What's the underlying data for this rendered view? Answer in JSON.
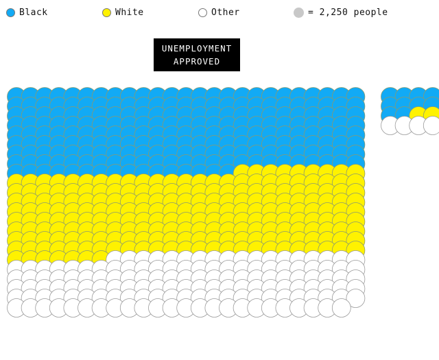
{
  "legend": {
    "items": [
      {
        "label": "Black",
        "color": "#12aaf5"
      },
      {
        "label": "White",
        "color": "#fff200"
      },
      {
        "label": "Other",
        "color": "#ffffff"
      }
    ],
    "unit_label": "= 2,250 people",
    "unit_color": "#c8c8c8"
  },
  "annotation": {
    "line1": "UNEMPLOYMENT",
    "line2": "APPROVED"
  },
  "chart_data": {
    "type": "unit-chart",
    "unit_value": 2250,
    "groups": [
      {
        "name": "UNEMPLOYMENT APPROVED",
        "counts": {
          "Black": 216,
          "White": 216,
          "Other": 142
        },
        "grid": {
          "columns": 25,
          "rows": 24
        }
      }
    ],
    "series": [
      {
        "name": "Black",
        "color": "#12aaf5"
      },
      {
        "name": "White",
        "color": "#fff200"
      },
      {
        "name": "Other",
        "color": "#ffffff"
      }
    ]
  }
}
